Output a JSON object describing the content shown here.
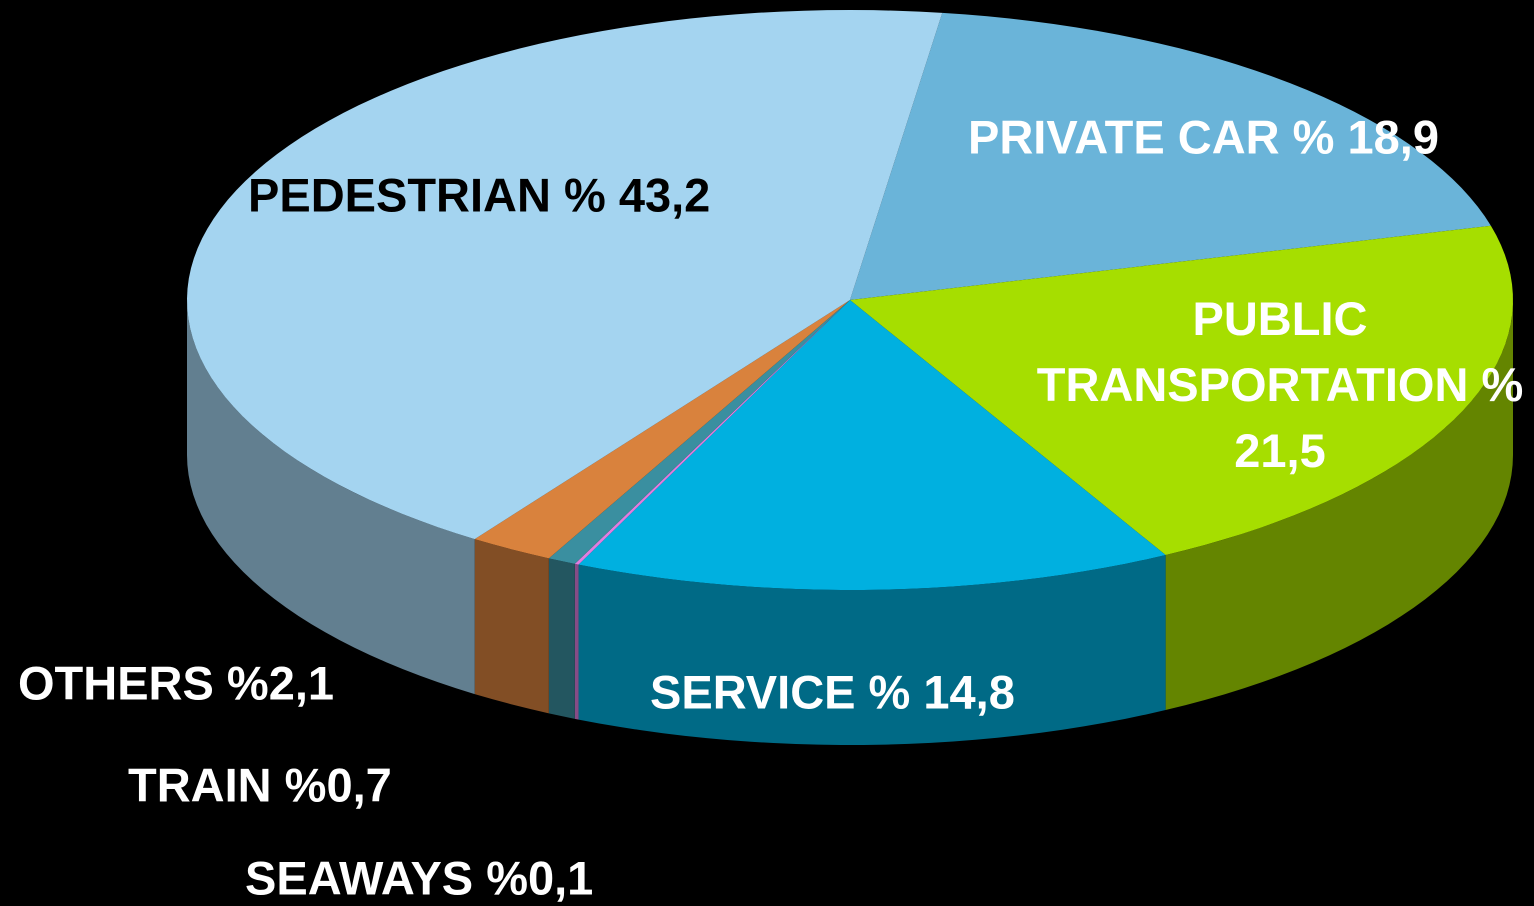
{
  "chart_data": {
    "type": "pie",
    "values": [
      18.9,
      21.5,
      14.8,
      0.1,
      0.7,
      2.1,
      43.2
    ],
    "value_labels": [
      "PRIVATE CAR % 18,9",
      "PUBLIC TRANSPORTATION % 21,5",
      "SERVICE % 14,8",
      "SEAWAYS %0,1",
      "TRAIN %0,7",
      "OTHERS %2,1",
      "PEDESTRIAN % 43,2"
    ],
    "colors": [
      "#6ab4d9",
      "#a6de00",
      "#00b0e0",
      "#e07ee0",
      "#3a8fa0",
      "#d9823d",
      "#a4d4f0"
    ],
    "start_angle": 8,
    "three_d": true
  }
}
